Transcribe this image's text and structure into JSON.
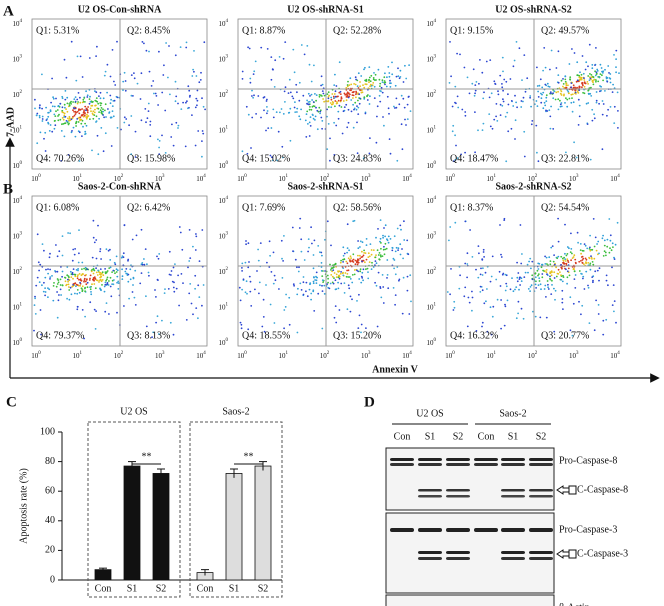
{
  "panel_labels": [
    "A",
    "B",
    "C",
    "D"
  ],
  "flow": {
    "y_axis_label": "7-AAD",
    "x_axis_label": "Annexin V",
    "tick_base": "10",
    "tick_exponents": [
      "0",
      "1",
      "2",
      "3",
      "4"
    ],
    "plots": [
      {
        "title": "U2 OS-Con-shRNA",
        "q1": "Q1: 5.31%",
        "q2": "Q2: 8.45%",
        "q3": "Q3: 15.98%",
        "q4": "Q4: 70.26%"
      },
      {
        "title": "U2 OS-shRNA-S1",
        "q1": "Q1: 8.87%",
        "q2": "Q2: 52.28%",
        "q3": "Q3: 24.83%",
        "q4": "Q4: 15.02%"
      },
      {
        "title": "U2 OS-shRNA-S2",
        "q1": "Q1: 9.15%",
        "q2": "Q2: 49.57%",
        "q3": "Q3: 22.81%",
        "q4": "Q4: 18.47%"
      },
      {
        "title": "Saos-2-Con-shRNA",
        "q1": "Q1: 6.08%",
        "q2": "Q2: 6.42%",
        "q3": "Q3: 8.13%",
        "q4": "Q4: 79.37%"
      },
      {
        "title": "Saos-2-shRNA-S1",
        "q1": "Q1: 7.69%",
        "q2": "Q2: 58.56%",
        "q3": "Q3: 15.20%",
        "q4": "Q4: 18.55%"
      },
      {
        "title": "Saos-2-shRNA-S2",
        "q1": "Q1: 8.37%",
        "q2": "Q2: 54.54%",
        "q3": "Q3: 20.77%",
        "q4": "Q4: 16.32%"
      }
    ]
  },
  "bar_chart": {
    "type": "bar",
    "y_axis_label": "Apoptosis rate (%)",
    "ylim": [
      0,
      100
    ],
    "yticks": [
      0,
      20,
      40,
      60,
      80,
      100
    ],
    "groups": [
      {
        "name": "U2 OS",
        "categories": [
          "Con",
          "S1",
          "S2"
        ],
        "values": [
          7,
          77,
          72
        ],
        "errors": [
          1,
          3,
          3
        ],
        "color": "#111111",
        "significance": "**"
      },
      {
        "name": "Saos-2",
        "categories": [
          "Con",
          "S1",
          "S2"
        ],
        "values": [
          5,
          72,
          77
        ],
        "errors": [
          2,
          3,
          3
        ],
        "color": "#dddddd",
        "significance": "**"
      }
    ]
  },
  "western_blot": {
    "cell_lines": [
      "U2 OS",
      "Saos-2"
    ],
    "lanes": [
      "Con",
      "S1",
      "S2",
      "Con",
      "S1",
      "S2"
    ],
    "bands": [
      "Pro-Caspase-8",
      "C-Caspase-8",
      "Pro-Caspase-3",
      "C-Caspase-3",
      "β-Actin"
    ]
  }
}
